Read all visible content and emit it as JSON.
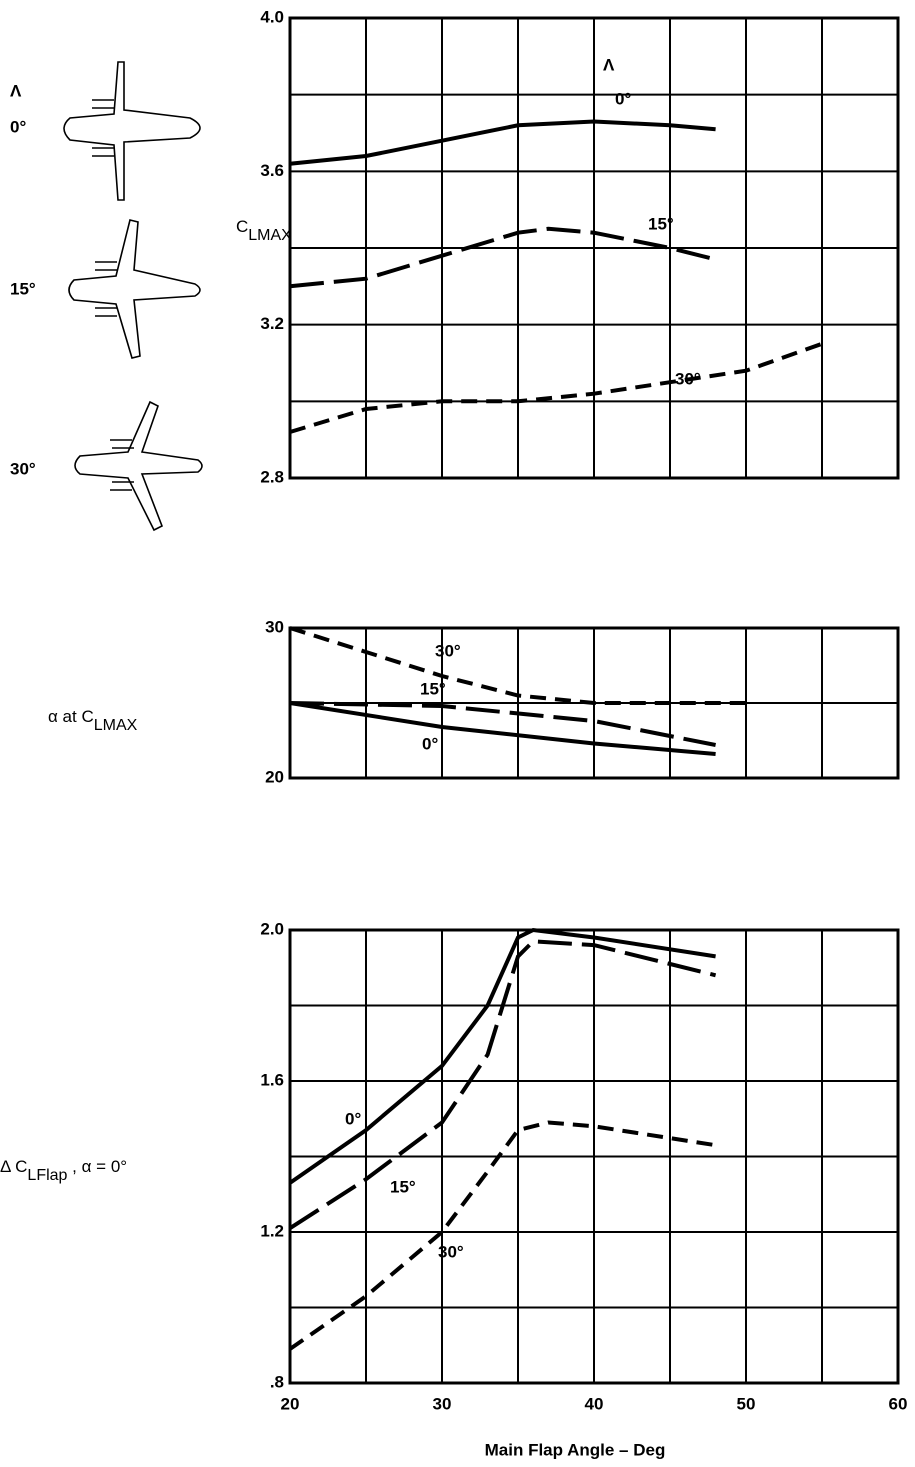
{
  "chart_data": [
    {
      "type": "line",
      "ylabel_parts": [
        {
          "text": "C"
        },
        {
          "text": "LMAX",
          "sub": true
        }
      ],
      "xlim": [
        20,
        60
      ],
      "xgrid": [
        25,
        30,
        35,
        40,
        45,
        50,
        55
      ],
      "ylim": [
        2.8,
        4.0
      ],
      "yticks": [
        2.8,
        3.2,
        3.6,
        {
          "value": 4,
          "label": "4.0"
        }
      ],
      "ygrid": [
        3.0,
        3.2,
        3.4,
        3.6,
        3.8
      ],
      "legend_title": "Λ",
      "series": [
        {
          "name": "0°",
          "color": "#000000",
          "dash": "solid",
          "x": [
            20,
            25,
            30,
            35,
            40,
            45,
            48
          ],
          "values": [
            3.62,
            3.64,
            3.68,
            3.72,
            3.73,
            3.72,
            3.71
          ]
        },
        {
          "name": "15°",
          "color": "#000000",
          "dash": "long",
          "x": [
            20,
            25,
            30,
            35,
            37,
            40,
            45,
            48
          ],
          "values": [
            3.3,
            3.32,
            3.38,
            3.44,
            3.45,
            3.44,
            3.4,
            3.37
          ]
        },
        {
          "name": "30°",
          "color": "#000000",
          "dash": "short",
          "x": [
            20,
            25,
            30,
            35,
            40,
            45,
            50,
            55
          ],
          "values": [
            2.92,
            2.98,
            3.0,
            3.0,
            3.02,
            3.05,
            3.08,
            3.15
          ]
        }
      ]
    },
    {
      "type": "line",
      "ylabel_parts": [
        {
          "text": "α at C"
        },
        {
          "text": "LMAX",
          "sub": true
        }
      ],
      "xlim": [
        20,
        60
      ],
      "xgrid": [
        25,
        30,
        35,
        40,
        45,
        50,
        55
      ],
      "ylim": [
        20,
        30
      ],
      "yticks": [
        20,
        30
      ],
      "ygrid": [
        25
      ],
      "series": [
        {
          "name": "0°",
          "color": "#000000",
          "dash": "solid",
          "x": [
            20,
            30,
            40,
            48
          ],
          "values": [
            25,
            23.4,
            22.3,
            21.6
          ]
        },
        {
          "name": "15°",
          "color": "#000000",
          "dash": "long",
          "x": [
            20,
            30,
            40,
            48
          ],
          "values": [
            25,
            24.8,
            23.8,
            22.2
          ]
        },
        {
          "name": "30°",
          "color": "#000000",
          "dash": "short",
          "x": [
            20,
            25,
            30,
            35,
            40,
            50
          ],
          "values": [
            30,
            28.4,
            26.8,
            25.5,
            25.0,
            25.0
          ]
        }
      ]
    },
    {
      "type": "line",
      "ylabel_parts": [
        {
          "text": "Δ C"
        },
        {
          "text": "LFlap",
          "sub": true
        },
        {
          "text": " , α = 0°"
        }
      ],
      "xlabel": "Main Flap Angle – Deg",
      "xlim": [
        20,
        60
      ],
      "xticks": [
        20,
        30,
        40,
        50,
        60
      ],
      "xgrid": [
        25,
        30,
        35,
        40,
        45,
        50,
        55
      ],
      "ylim": [
        0.8,
        2.0
      ],
      "yticks": [
        {
          "value": 0.8,
          "label": ".8"
        },
        1.2,
        1.6,
        {
          "value": 2,
          "label": "2.0"
        }
      ],
      "ygrid": [
        1.0,
        1.2,
        1.4,
        1.6,
        1.8
      ],
      "series": [
        {
          "name": "0°",
          "color": "#000000",
          "dash": "solid",
          "x": [
            20,
            25,
            30,
            33,
            35,
            36,
            40,
            48
          ],
          "values": [
            1.33,
            1.47,
            1.64,
            1.8,
            1.98,
            2.0,
            1.98,
            1.93
          ]
        },
        {
          "name": "15°",
          "color": "#000000",
          "dash": "long",
          "x": [
            20,
            25,
            30,
            33,
            35,
            36,
            40,
            48
          ],
          "values": [
            1.21,
            1.34,
            1.49,
            1.67,
            1.93,
            1.97,
            1.96,
            1.88
          ]
        },
        {
          "name": "30°",
          "color": "#000000",
          "dash": "short",
          "x": [
            20,
            25,
            30,
            33,
            35,
            37,
            40,
            48
          ],
          "values": [
            0.89,
            1.03,
            1.2,
            1.36,
            1.47,
            1.49,
            1.48,
            1.43
          ]
        }
      ]
    }
  ]
}
